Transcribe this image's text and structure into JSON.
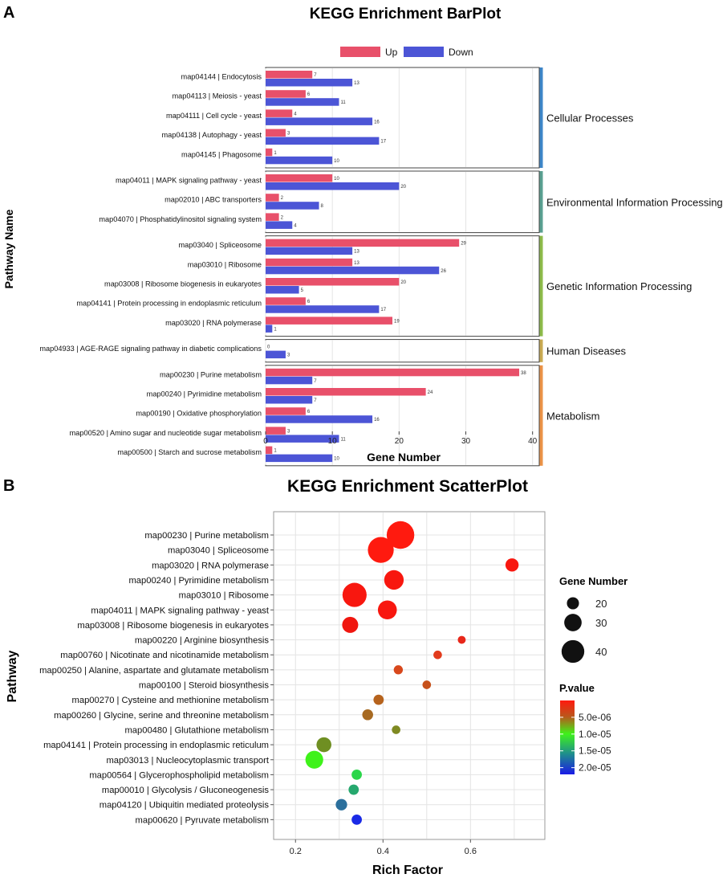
{
  "panels": {
    "a": "A",
    "b": "B"
  },
  "chart_data": [
    {
      "type": "bar",
      "title": "KEGG Enrichment BarPlot",
      "xlabel": "Gene Number",
      "ylabel": "Pathway Name",
      "xlim": [
        0,
        41
      ],
      "xticks": [
        "0",
        "10",
        "20",
        "30",
        "40"
      ],
      "xtick_values": [
        0,
        10,
        20,
        30,
        40
      ],
      "legend": {
        "position": "top",
        "entries": [
          {
            "name": "Up",
            "color": "#e8506a"
          },
          {
            "name": "Down",
            "color": "#4c55d6"
          }
        ]
      },
      "series": [
        {
          "name": "Up",
          "color": "#e8506a"
        },
        {
          "name": "Down",
          "color": "#4c55d6"
        }
      ],
      "groups": [
        {
          "name": "Cellular Processes",
          "color": "#3e86c8",
          "categories": [
            {
              "label": "map04144 | Endocytosis",
              "up": 7,
              "down": 13
            },
            {
              "label": "map04113 | Meiosis - yeast",
              "up": 6,
              "down": 11
            },
            {
              "label": "map04111 | Cell cycle - yeast",
              "up": 4,
              "down": 16
            },
            {
              "label": "map04138 | Autophagy - yeast",
              "up": 3,
              "down": 17
            },
            {
              "label": "map04145 | Phagosome",
              "up": 1,
              "down": 10
            }
          ]
        },
        {
          "name": "Environmental Information Processing",
          "color": "#5aa091",
          "categories": [
            {
              "label": "map04011 | MAPK signaling pathway - yeast",
              "up": 10,
              "down": 20
            },
            {
              "label": "map02010 | ABC transporters",
              "up": 2,
              "down": 8
            },
            {
              "label": "map04070 | Phosphatidylinositol signaling system",
              "up": 2,
              "down": 4
            }
          ]
        },
        {
          "name": "Genetic Information Processing",
          "color": "#8dbb4a",
          "categories": [
            {
              "label": "map03040 | Spliceosome",
              "up": 29,
              "down": 13
            },
            {
              "label": "map03010 | Ribosome",
              "up": 13,
              "down": 26
            },
            {
              "label": "map03008 | Ribosome biogenesis in eukaryotes",
              "up": 20,
              "down": 5
            },
            {
              "label": "map04141 | Protein processing in endoplasmic reticulum",
              "up": 6,
              "down": 17
            },
            {
              "label": "map03020 | RNA polymerase",
              "up": 19,
              "down": 1
            }
          ]
        },
        {
          "name": "Human Diseases",
          "color": "#c9aa52",
          "categories": [
            {
              "label": "map04933 | AGE-RAGE signaling pathway in diabetic complications",
              "up": 0,
              "down": 3
            }
          ]
        },
        {
          "name": "Metabolism",
          "color": "#eb9347",
          "categories": [
            {
              "label": "map00230 | Purine metabolism",
              "up": 38,
              "down": 7
            },
            {
              "label": "map00240 | Pyrimidine metabolism",
              "up": 24,
              "down": 7
            },
            {
              "label": "map00190 | Oxidative phosphorylation",
              "up": 6,
              "down": 16
            },
            {
              "label": "map00520 | Amino sugar and nucleotide sugar metabolism",
              "up": 3,
              "down": 11
            },
            {
              "label": "map00500 | Starch and sucrose metabolism",
              "up": 1,
              "down": 10
            }
          ]
        }
      ]
    },
    {
      "type": "scatter",
      "title": "KEGG Enrichment ScatterPlot",
      "xlabel": "Rich Factor",
      "ylabel": "Pathway",
      "xlim": [
        0.15,
        0.77
      ],
      "xticks": [
        "0.2",
        "0.4",
        "0.6"
      ],
      "xtick_values": [
        0.2,
        0.4,
        0.6
      ],
      "size_legend": {
        "title": "Gene Number",
        "entries": [
          {
            "label": "20",
            "value": 20
          },
          {
            "label": "30",
            "value": 30
          },
          {
            "label": "40",
            "value": 40
          }
        ]
      },
      "color_legend": {
        "title": "P.value",
        "ticks": [
          {
            "label": "5.0e-06",
            "value": 5e-06
          },
          {
            "label": "1.0e-05",
            "value": 1e-05
          },
          {
            "label": "1.5e-05",
            "value": 1.5e-05
          },
          {
            "label": "2.0e-05",
            "value": 2e-05
          }
        ],
        "range": [
          0,
          2.2e-05
        ]
      },
      "points": [
        {
          "label": "map00230 | Purine metabolism",
          "x": 0.44,
          "gene_number": 45,
          "p_value": 0.0,
          "color": "#ff1a0f"
        },
        {
          "label": "map03040 | Spliceosome",
          "x": 0.395,
          "gene_number": 42,
          "p_value": 0.0,
          "color": "#ff1a0f"
        },
        {
          "label": "map03020 | RNA polymerase",
          "x": 0.695,
          "gene_number": 20,
          "p_value": 0.0,
          "color": "#f8170f"
        },
        {
          "label": "map00240 | Pyrimidine metabolism",
          "x": 0.425,
          "gene_number": 31,
          "p_value": 0.0,
          "color": "#f8170f"
        },
        {
          "label": "map03010 | Ribosome",
          "x": 0.335,
          "gene_number": 39,
          "p_value": 0.0,
          "color": "#f8170f"
        },
        {
          "label": "map04011 | MAPK signaling pathway - yeast",
          "x": 0.41,
          "gene_number": 30,
          "p_value": 0.0,
          "color": "#f8170f"
        },
        {
          "label": "map03008 | Ribosome biogenesis in eukaryotes",
          "x": 0.325,
          "gene_number": 25,
          "p_value": 1e-07,
          "color": "#f0160f"
        },
        {
          "label": "map00220 | Arginine biosynthesis",
          "x": 0.58,
          "gene_number": 11,
          "p_value": 1e-06,
          "color": "#e8271a"
        },
        {
          "label": "map00760 | Nicotinate and nicotinamide metabolism",
          "x": 0.525,
          "gene_number": 12,
          "p_value": 2e-06,
          "color": "#e23b1c"
        },
        {
          "label": "map00250 | Alanine, aspartate and glutamate metabolism",
          "x": 0.435,
          "gene_number": 13,
          "p_value": 3e-06,
          "color": "#d8481c"
        },
        {
          "label": "map00100 | Steroid biosynthesis",
          "x": 0.5,
          "gene_number": 12,
          "p_value": 4e-06,
          "color": "#c6501a"
        },
        {
          "label": "map00270 | Cysteine and methionine metabolism",
          "x": 0.39,
          "gene_number": 15,
          "p_value": 5e-06,
          "color": "#b6631d"
        },
        {
          "label": "map00260 | Glycine, serine and threonine metabolism",
          "x": 0.365,
          "gene_number": 16,
          "p_value": 6e-06,
          "color": "#a76a22"
        },
        {
          "label": "map00480 | Glutathione metabolism",
          "x": 0.43,
          "gene_number": 12,
          "p_value": 8e-06,
          "color": "#7f8a22"
        },
        {
          "label": "map04141 | Protein processing in endoplasmic reticulum",
          "x": 0.265,
          "gene_number": 23,
          "p_value": 9e-06,
          "color": "#6f8f22"
        },
        {
          "label": "map03013 | Nucleocytoplasmic transport",
          "x": 0.243,
          "gene_number": 28,
          "p_value": 1.05e-05,
          "color": "#3ff21a"
        },
        {
          "label": "map00564 | Glycerophospholipid metabolism",
          "x": 0.34,
          "gene_number": 15,
          "p_value": 1.15e-05,
          "color": "#2bd64a"
        },
        {
          "label": "map00010 | Glycolysis / Gluconeogenesis",
          "x": 0.333,
          "gene_number": 15,
          "p_value": 1.3e-05,
          "color": "#26a86e"
        },
        {
          "label": "map04120 | Ubiquitin mediated proteolysis",
          "x": 0.305,
          "gene_number": 17,
          "p_value": 1.6e-05,
          "color": "#2b6f9c"
        },
        {
          "label": "map00620 | Pyruvate metabolism",
          "x": 0.34,
          "gene_number": 15,
          "p_value": 2.1e-05,
          "color": "#1a2ae6"
        }
      ]
    }
  ]
}
